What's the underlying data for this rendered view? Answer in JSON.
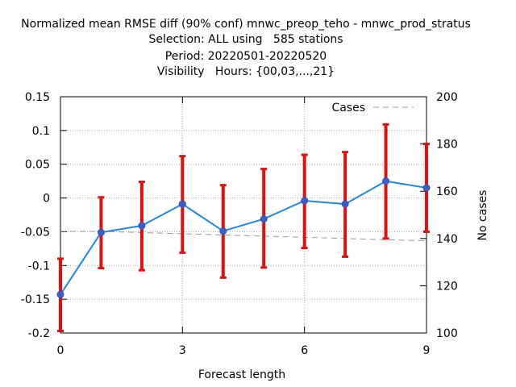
{
  "titles": [
    "Normalized mean RMSE diff (90% conf) mnwc_preop_teho - mnwc_prod_stratus",
    "Selection: ALL using   585 stations",
    "Period: 20220501-20220520",
    "Visibility   Hours: {00,03,...,21}"
  ],
  "chart_data": {
    "type": "line",
    "xlabel": "Forecast length",
    "ylabel": "",
    "y2label": "No cases",
    "xlim": [
      0,
      9
    ],
    "ylim": [
      -0.2,
      0.15
    ],
    "y2lim": [
      100,
      200
    ],
    "x_ticks": [
      "0",
      "3",
      "6",
      "9"
    ],
    "y_ticks": [
      "0.15",
      "0.1",
      "0.05",
      "0",
      "-0.05",
      "-0.1",
      "-0.15",
      "-0.2"
    ],
    "y2_ticks": [
      "200",
      "180",
      "160",
      "140",
      "120",
      "100"
    ],
    "grid": true,
    "legend_position": "top-right",
    "colors": {
      "mean": "#1e88e5",
      "marker": "#3a5fcd",
      "conf": "#e01010",
      "cases": "#999999"
    },
    "series": [
      {
        "name": "",
        "axis": "y",
        "x": [
          0,
          1,
          2,
          3,
          4,
          5,
          6,
          7,
          8,
          9
        ],
        "values": [
          -0.143,
          -0.051,
          -0.041,
          -0.009,
          -0.049,
          -0.031,
          -0.004,
          -0.009,
          0.025,
          0.015
        ],
        "lower": [
          -0.197,
          -0.104,
          -0.107,
          -0.081,
          -0.118,
          -0.103,
          -0.074,
          -0.087,
          -0.06,
          -0.05
        ],
        "upper": [
          -0.09,
          0.001,
          0.024,
          0.062,
          0.019,
          0.043,
          0.064,
          0.068,
          0.109,
          0.08
        ]
      },
      {
        "name": "Cases",
        "axis": "y2",
        "x": [
          0,
          1,
          2,
          3,
          4,
          5,
          6,
          7,
          8,
          9
        ],
        "values": [
          143,
          143,
          142.5,
          142,
          141.5,
          141,
          140.5,
          140,
          139.5,
          139
        ]
      }
    ]
  }
}
